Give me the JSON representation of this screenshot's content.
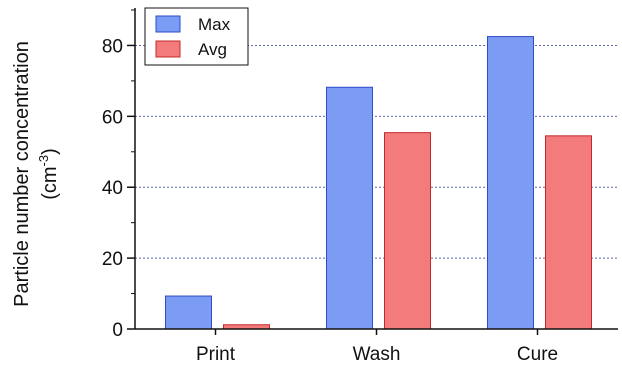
{
  "chart_data": {
    "type": "bar",
    "title": "",
    "xlabel": "",
    "ylabel": "Particle number concentration",
    "ylabel_unit_base": "(cm",
    "ylabel_unit_exp": "-3",
    "ylabel_unit_close": ")",
    "categories": [
      "Print",
      "Wash",
      "Cure"
    ],
    "series": [
      {
        "name": "Max",
        "values": [
          9.3,
          68.2,
          82.5
        ],
        "color": "#7b9cf2",
        "edge": "#2e4bc8"
      },
      {
        "name": "Avg",
        "values": [
          1.2,
          55.4,
          54.5
        ],
        "color": "#f47b7b",
        "edge": "#c22a2a"
      }
    ],
    "ylim": [
      0,
      90
    ],
    "yticks": [
      0,
      20,
      40,
      60,
      80
    ],
    "grid": "horizontal dotted",
    "legend": "top-left"
  }
}
